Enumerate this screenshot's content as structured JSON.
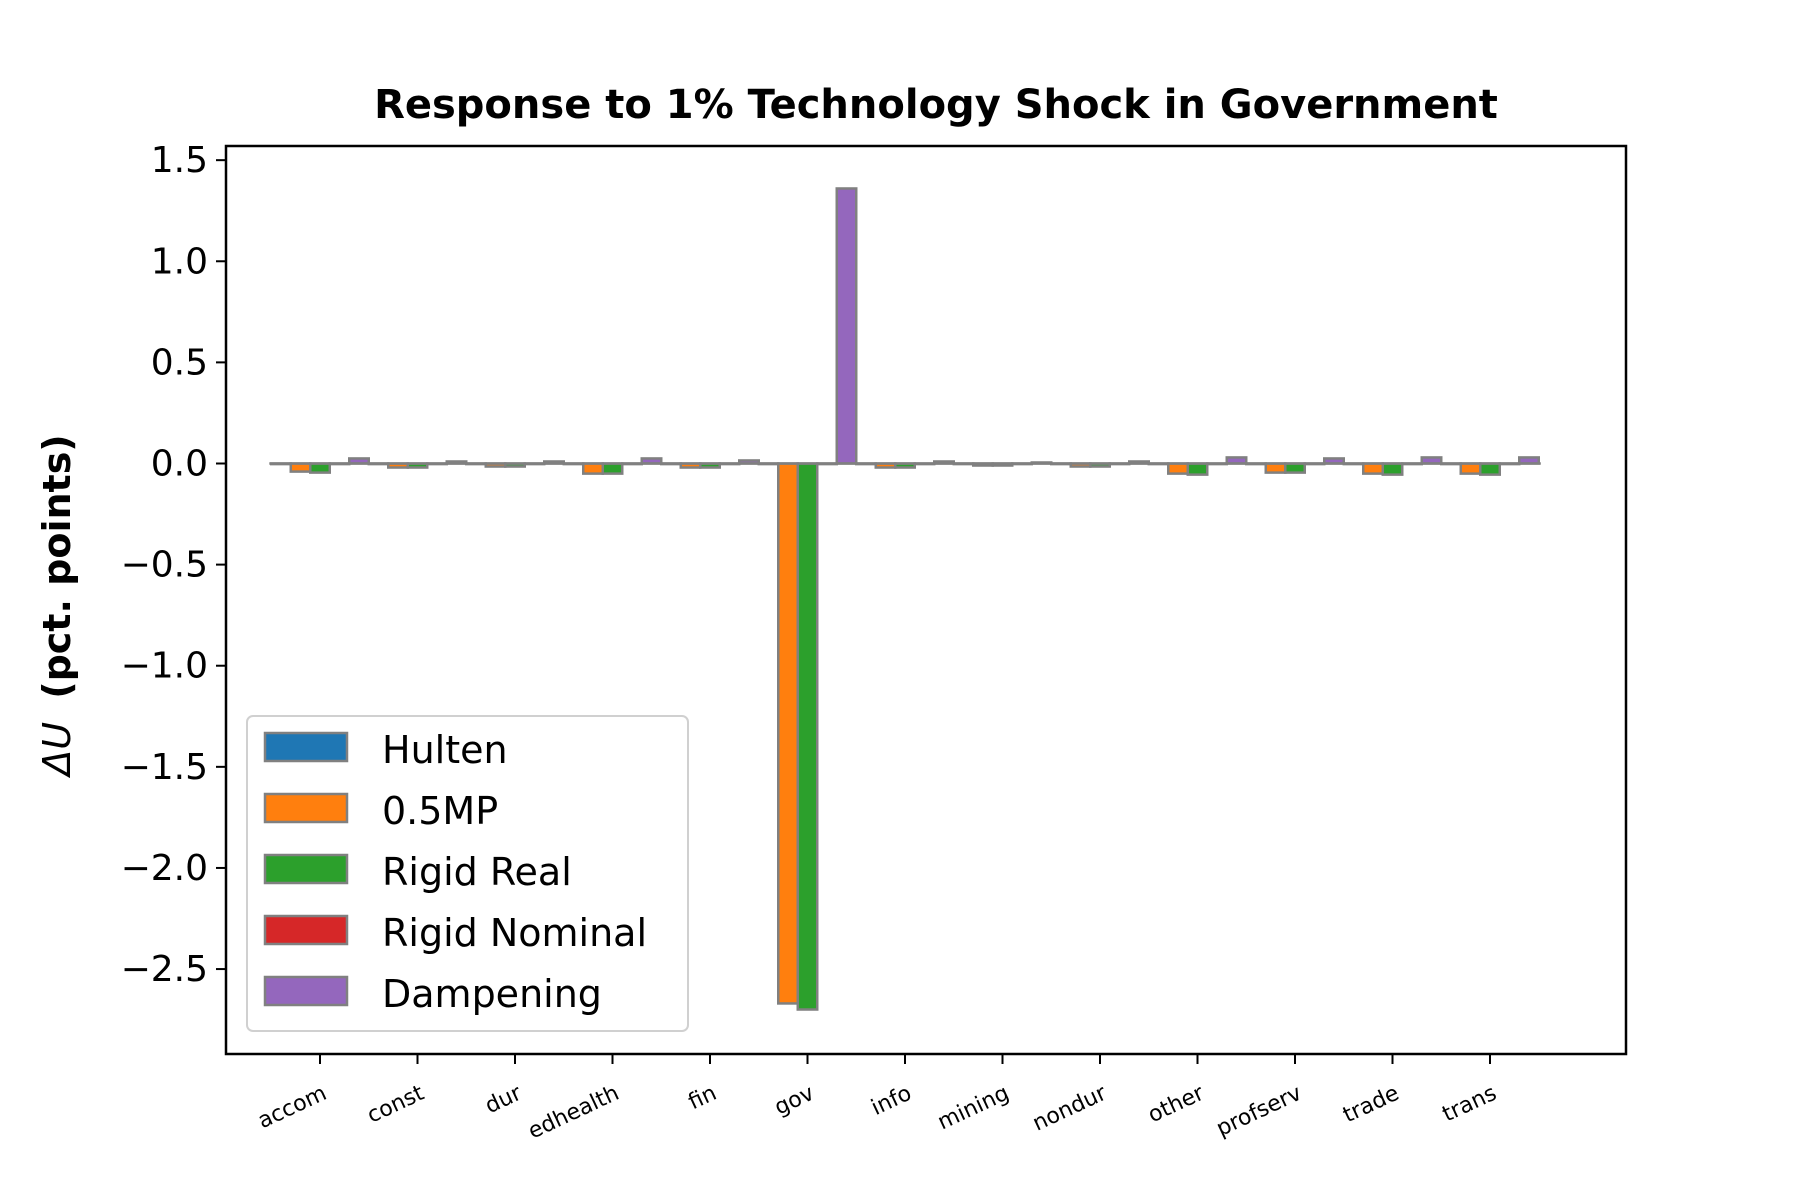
{
  "chart_data": {
    "type": "bar",
    "title": "Response to 1% Technology Shock in Government",
    "ylabel_symbol": "ΔU",
    "ylabel_text": "(pct. points)",
    "xlabel": "",
    "ylim": [
      -2.92,
      1.57
    ],
    "yticks": [
      1.5,
      1.0,
      0.5,
      0.0,
      -0.5,
      -1.0,
      -1.5,
      -2.0,
      -2.5
    ],
    "ytick_labels": [
      "1.5",
      "1.0",
      "0.5",
      "0.0",
      "−0.5",
      "−1.0",
      "−1.5",
      "−2.0",
      "−2.5"
    ],
    "grid": false,
    "legend_position": "lower-left",
    "bar_edge_color": "#808080",
    "categories": [
      "accom",
      "const",
      "dur",
      "edhealth",
      "fin",
      "gov",
      "info",
      "mining",
      "nondur",
      "other",
      "profserv",
      "trade",
      "trans"
    ],
    "series": [
      {
        "name": "Hulten",
        "color": "#1f77b4",
        "values": [
          0,
          0,
          0,
          0,
          0,
          0,
          0,
          0,
          0,
          0,
          0,
          0,
          0
        ]
      },
      {
        "name": "0.5MP",
        "color": "#ff7f0e",
        "values": [
          -0.04,
          -0.02,
          -0.015,
          -0.05,
          -0.02,
          -2.67,
          -0.02,
          -0.01,
          -0.015,
          -0.05,
          -0.045,
          -0.05,
          -0.05
        ]
      },
      {
        "name": "Rigid Real",
        "color": "#2ca02c",
        "values": [
          -0.045,
          -0.02,
          -0.015,
          -0.05,
          -0.02,
          -2.7,
          -0.02,
          -0.01,
          -0.015,
          -0.055,
          -0.045,
          -0.055,
          -0.055
        ]
      },
      {
        "name": "Rigid Nominal",
        "color": "#d62728",
        "values": [
          0,
          0,
          0,
          0,
          0,
          0,
          0,
          0,
          0,
          0,
          0,
          0,
          0
        ]
      },
      {
        "name": "Dampening",
        "color": "#9467bd",
        "values": [
          0.025,
          0.01,
          0.01,
          0.025,
          0.015,
          1.36,
          0.01,
          0.005,
          0.01,
          0.03,
          0.025,
          0.03,
          0.03
        ]
      }
    ]
  }
}
